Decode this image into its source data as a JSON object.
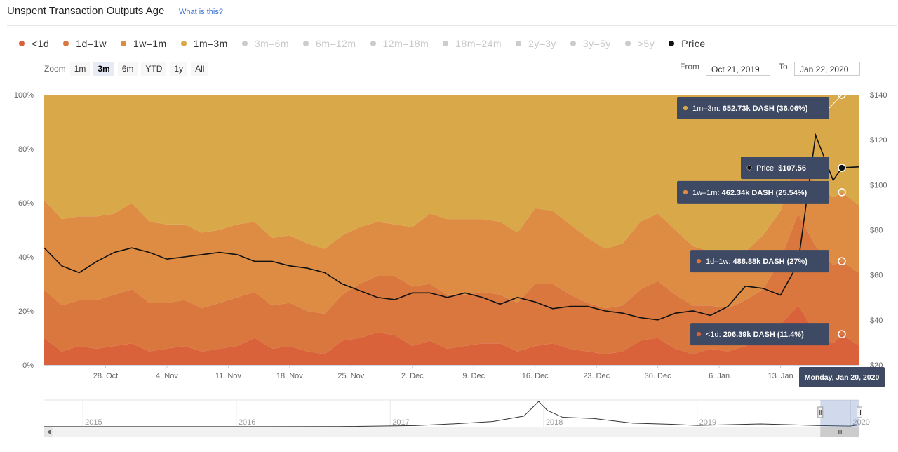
{
  "header": {
    "title": "Unspent Transaction Outputs Age",
    "help_link": "What is this?"
  },
  "legend": [
    {
      "label": "<1d",
      "color": "#d9623b",
      "active": true
    },
    {
      "label": "1d–1w",
      "color": "#d9773e",
      "active": true
    },
    {
      "label": "1w–1m",
      "color": "#de8c43",
      "active": true
    },
    {
      "label": "1m–3m",
      "color": "#d9a848",
      "active": true
    },
    {
      "label": "3m–6m",
      "color": "#cccccc",
      "active": false
    },
    {
      "label": "6m–12m",
      "color": "#cccccc",
      "active": false
    },
    {
      "label": "12m–18m",
      "color": "#cccccc",
      "active": false
    },
    {
      "label": "18m–24m",
      "color": "#cccccc",
      "active": false
    },
    {
      "label": "2y–3y",
      "color": "#cccccc",
      "active": false
    },
    {
      "label": "3y–5y",
      "color": "#cccccc",
      "active": false
    },
    {
      "label": ">5y",
      "color": "#cccccc",
      "active": false
    },
    {
      "label": "Price",
      "color": "#111111",
      "active": true
    }
  ],
  "zoom": {
    "label": "Zoom",
    "options": [
      "1m",
      "3m",
      "6m",
      "YTD",
      "1y",
      "All"
    ],
    "selected": "3m"
  },
  "range": {
    "from_label": "From",
    "from": "Oct 21, 2019",
    "to_label": "To",
    "to": "Jan 22, 2020"
  },
  "chart_data": {
    "type": "area",
    "stacking": "percent",
    "x_start": "2019-10-21",
    "x_end": "2020-01-22",
    "left_axis": {
      "ticks": [
        "0%",
        "20%",
        "40%",
        "60%",
        "80%",
        "100%"
      ],
      "min": 0,
      "max": 100
    },
    "right_axis": {
      "ticks": [
        "$20",
        "$40",
        "$60",
        "$80",
        "$100",
        "$120",
        "$140"
      ],
      "min": 20,
      "max": 140
    },
    "x_ticks": [
      "28. Oct",
      "4. Nov",
      "11. Nov",
      "18. Nov",
      "25. Nov",
      "2. Dec",
      "9. Dec",
      "16. Dec",
      "23. Dec",
      "30. Dec",
      "6. Jan",
      "13. Jan"
    ],
    "x_tick_dates": [
      "2019-10-28",
      "2019-11-04",
      "2019-11-11",
      "2019-11-18",
      "2019-11-25",
      "2019-12-02",
      "2019-12-09",
      "2019-12-16",
      "2019-12-23",
      "2019-12-30",
      "2020-01-06",
      "2020-01-13"
    ],
    "dates": [
      "2019-10-21",
      "2019-10-23",
      "2019-10-25",
      "2019-10-27",
      "2019-10-29",
      "2019-10-31",
      "2019-11-02",
      "2019-11-04",
      "2019-11-06",
      "2019-11-08",
      "2019-11-10",
      "2019-11-12",
      "2019-11-14",
      "2019-11-16",
      "2019-11-18",
      "2019-11-20",
      "2019-11-22",
      "2019-11-24",
      "2019-11-26",
      "2019-11-28",
      "2019-11-30",
      "2019-12-02",
      "2019-12-04",
      "2019-12-06",
      "2019-12-08",
      "2019-12-10",
      "2019-12-12",
      "2019-12-14",
      "2019-12-16",
      "2019-12-18",
      "2019-12-20",
      "2019-12-22",
      "2019-12-24",
      "2019-12-26",
      "2019-12-28",
      "2019-12-30",
      "2020-01-01",
      "2020-01-03",
      "2020-01-05",
      "2020-01-07",
      "2020-01-09",
      "2020-01-11",
      "2020-01-13",
      "2020-01-15",
      "2020-01-17",
      "2020-01-19",
      "2020-01-20",
      "2020-01-22"
    ],
    "series": [
      {
        "name": "<1d",
        "color": "#d9623b",
        "values": [
          10,
          5,
          7,
          6,
          7,
          8,
          5,
          6,
          7,
          5,
          6,
          7,
          10,
          6,
          7,
          5,
          4,
          9,
          10,
          12,
          11,
          7,
          9,
          6,
          7,
          8,
          8,
          5,
          7,
          8,
          6,
          5,
          4,
          5,
          9,
          10,
          6,
          4,
          6,
          5,
          7,
          9,
          15,
          22,
          12,
          8,
          11.4,
          7
        ]
      },
      {
        "name": "1d–1w",
        "color": "#d9773e",
        "values": [
          18,
          17,
          17,
          18,
          19,
          20,
          18,
          17,
          17,
          16,
          17,
          18,
          17,
          16,
          16,
          15,
          15,
          17,
          20,
          21,
          22,
          22,
          21,
          20,
          19,
          19,
          18,
          18,
          23,
          22,
          20,
          18,
          17,
          17,
          19,
          21,
          20,
          18,
          16,
          16,
          17,
          19,
          24,
          34,
          32,
          29,
          27,
          27
        ]
      },
      {
        "name": "1w–1m",
        "color": "#de8c43",
        "values": [
          33,
          32,
          31,
          31,
          30,
          32,
          30,
          29,
          28,
          28,
          27,
          27,
          26,
          25,
          25,
          25,
          24,
          22,
          21,
          20,
          19,
          22,
          26,
          28,
          28,
          27,
          27,
          26,
          28,
          27,
          26,
          24,
          22,
          23,
          25,
          25,
          24,
          22,
          20,
          18,
          18,
          20,
          18,
          22,
          23,
          25,
          25.54,
          25
        ]
      },
      {
        "name": "1m–3m",
        "color": "#d9a848",
        "values": [
          39,
          46,
          45,
          45,
          44,
          40,
          47,
          48,
          48,
          51,
          50,
          48,
          47,
          53,
          52,
          55,
          57,
          52,
          49,
          47,
          48,
          49,
          44,
          46,
          46,
          46,
          47,
          51,
          42,
          43,
          48,
          53,
          57,
          55,
          47,
          44,
          50,
          56,
          58,
          61,
          58,
          52,
          43,
          22,
          33,
          38,
          36.06,
          41
        ]
      }
    ],
    "price": {
      "name": "Price",
      "color": "#111111",
      "values": [
        72,
        64,
        61,
        66,
        70,
        72,
        70,
        67,
        68,
        69,
        70,
        69,
        66,
        66,
        64,
        63,
        61,
        56,
        53,
        50,
        49,
        52,
        52,
        50,
        52,
        50,
        47,
        50,
        48,
        45,
        46,
        46,
        44,
        43,
        41,
        40,
        43,
        44,
        42,
        46,
        55,
        54,
        51,
        65,
        122,
        102,
        107.56,
        108
      ]
    }
  },
  "tooltips": [
    {
      "series": "1m–3m",
      "label": "1m–3m:",
      "value": "652.73k DASH (36.06%)"
    },
    {
      "series": "Price",
      "label": "Price:",
      "value": "$107.56"
    },
    {
      "series": "1w–1m",
      "label": "1w–1m:",
      "value": "462.34k DASH (25.54%)"
    },
    {
      "series": "1d–1w",
      "label": "1d–1w:",
      "value": "488.88k DASH (27%)"
    },
    {
      "series": "<1d",
      "label": "<1d:",
      "value": "206.39k DASH (11.4%)"
    }
  ],
  "hover_date": "2020-01-20",
  "hover_label": "Monday, Jan 20, 2020",
  "navigator": {
    "years": [
      "2015",
      "2016",
      "2017",
      "2018",
      "2019",
      "2020"
    ],
    "year_dates": [
      "2015-01-01",
      "2016-01-01",
      "2017-01-01",
      "2018-01-01",
      "2019-01-01",
      "2020-01-01"
    ],
    "range_start": "2014-10-01",
    "range_end": "2020-01-22",
    "selected_from": "2019-10-21",
    "selected_to": "2020-01-22",
    "price_history": [
      {
        "date": "2014-10-01",
        "price": 3
      },
      {
        "date": "2015-06-01",
        "price": 3
      },
      {
        "date": "2016-01-01",
        "price": 4
      },
      {
        "date": "2016-09-01",
        "price": 9
      },
      {
        "date": "2017-03-01",
        "price": 70
      },
      {
        "date": "2017-06-01",
        "price": 180
      },
      {
        "date": "2017-09-01",
        "price": 320
      },
      {
        "date": "2017-11-15",
        "price": 650
      },
      {
        "date": "2017-12-20",
        "price": 1550
      },
      {
        "date": "2018-01-10",
        "price": 1000
      },
      {
        "date": "2018-02-15",
        "price": 580
      },
      {
        "date": "2018-05-01",
        "price": 500
      },
      {
        "date": "2018-08-01",
        "price": 220
      },
      {
        "date": "2018-11-01",
        "price": 150
      },
      {
        "date": "2019-01-01",
        "price": 80
      },
      {
        "date": "2019-06-01",
        "price": 170
      },
      {
        "date": "2019-10-21",
        "price": 70
      },
      {
        "date": "2019-12-30",
        "price": 40
      },
      {
        "date": "2020-01-20",
        "price": 108
      }
    ]
  }
}
